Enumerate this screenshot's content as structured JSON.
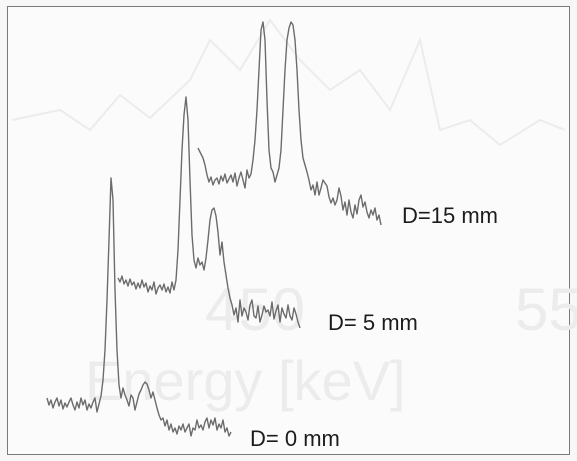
{
  "chart_data": {
    "type": "line",
    "title": "",
    "xlabel": "Energy [keV]",
    "ylabel": "",
    "background_watermark": {
      "tick_labels": [
        "450",
        "55"
      ],
      "axis_label": "Energy [keV]"
    },
    "series": [
      {
        "name": "D=15 mm",
        "color": "#6c6c6c",
        "points": [
          [
            198,
            148
          ],
          [
            200,
            152
          ],
          [
            203,
            158
          ],
          [
            205,
            165
          ],
          [
            207,
            175
          ],
          [
            209,
            182
          ],
          [
            211,
            177
          ],
          [
            213,
            185
          ],
          [
            215,
            180
          ],
          [
            217,
            178
          ],
          [
            219,
            184
          ],
          [
            221,
            176
          ],
          [
            223,
            181
          ],
          [
            225,
            174
          ],
          [
            227,
            183
          ],
          [
            229,
            179
          ],
          [
            231,
            175
          ],
          [
            233,
            182
          ],
          [
            235,
            173
          ],
          [
            237,
            186
          ],
          [
            239,
            178
          ],
          [
            241,
            172
          ],
          [
            243,
            180
          ],
          [
            245,
            188
          ],
          [
            247,
            170
          ],
          [
            249,
            178
          ],
          [
            251,
            174
          ],
          [
            253,
            160
          ],
          [
            255,
            140
          ],
          [
            257,
            110
          ],
          [
            259,
            70
          ],
          [
            261,
            30
          ],
          [
            263,
            22
          ],
          [
            265,
            40
          ],
          [
            267,
            100
          ],
          [
            269,
            150
          ],
          [
            271,
            168
          ],
          [
            273,
            172
          ],
          [
            275,
            182
          ],
          [
            277,
            175
          ],
          [
            279,
            168
          ],
          [
            281,
            150
          ],
          [
            283,
            110
          ],
          [
            285,
            70
          ],
          [
            287,
            40
          ],
          [
            289,
            28
          ],
          [
            291,
            22
          ],
          [
            293,
            25
          ],
          [
            295,
            40
          ],
          [
            297,
            70
          ],
          [
            299,
            110
          ],
          [
            301,
            140
          ],
          [
            303,
            158
          ],
          [
            305,
            165
          ],
          [
            307,
            172
          ],
          [
            309,
            180
          ],
          [
            311,
            190
          ],
          [
            313,
            185
          ],
          [
            315,
            195
          ],
          [
            317,
            182
          ],
          [
            319,
            195
          ],
          [
            321,
            188
          ],
          [
            323,
            180
          ],
          [
            325,
            183
          ],
          [
            327,
            186
          ],
          [
            329,
            197
          ],
          [
            331,
            203
          ],
          [
            333,
            198
          ],
          [
            335,
            205
          ],
          [
            337,
            200
          ],
          [
            339,
            188
          ],
          [
            341,
            196
          ],
          [
            343,
            210
          ],
          [
            345,
            202
          ],
          [
            347,
            215
          ],
          [
            349,
            200
          ],
          [
            351,
            212
          ],
          [
            353,
            218
          ],
          [
            355,
            205
          ],
          [
            357,
            214
          ],
          [
            359,
            200
          ],
          [
            361,
            195
          ],
          [
            363,
            207
          ],
          [
            365,
            202
          ],
          [
            367,
            212
          ],
          [
            369,
            218
          ],
          [
            371,
            210
          ],
          [
            373,
            215
          ],
          [
            375,
            208
          ],
          [
            377,
            220
          ],
          [
            379,
            215
          ],
          [
            381,
            225
          ]
        ]
      },
      {
        "name": "D= 5 mm",
        "color": "#6c6c6c",
        "points": [
          [
            118,
            278
          ],
          [
            120,
            282
          ],
          [
            122,
            276
          ],
          [
            124,
            284
          ],
          [
            126,
            280
          ],
          [
            128,
            286
          ],
          [
            130,
            279
          ],
          [
            132,
            285
          ],
          [
            134,
            282
          ],
          [
            136,
            289
          ],
          [
            138,
            283
          ],
          [
            140,
            288
          ],
          [
            142,
            280
          ],
          [
            144,
            287
          ],
          [
            146,
            283
          ],
          [
            148,
            292
          ],
          [
            150,
            286
          ],
          [
            152,
            290
          ],
          [
            154,
            282
          ],
          [
            156,
            294
          ],
          [
            158,
            288
          ],
          [
            160,
            285
          ],
          [
            162,
            290
          ],
          [
            164,
            284
          ],
          [
            166,
            292
          ],
          [
            168,
            287
          ],
          [
            170,
            293
          ],
          [
            172,
            282
          ],
          [
            174,
            290
          ],
          [
            176,
            280
          ],
          [
            178,
            250
          ],
          [
            180,
            200
          ],
          [
            182,
            150
          ],
          [
            184,
            115
          ],
          [
            186,
            97
          ],
          [
            188,
            120
          ],
          [
            190,
            180
          ],
          [
            192,
            235
          ],
          [
            194,
            260
          ],
          [
            196,
            268
          ],
          [
            198,
            258
          ],
          [
            200,
            265
          ],
          [
            202,
            262
          ],
          [
            204,
            270
          ],
          [
            206,
            258
          ],
          [
            208,
            240
          ],
          [
            210,
            220
          ],
          [
            212,
            210
          ],
          [
            214,
            208
          ],
          [
            216,
            216
          ],
          [
            218,
            232
          ],
          [
            220,
            255
          ],
          [
            222,
            242
          ],
          [
            224,
            262
          ],
          [
            226,
            275
          ],
          [
            228,
            288
          ],
          [
            230,
            298
          ],
          [
            232,
            305
          ],
          [
            234,
            315
          ],
          [
            236,
            308
          ],
          [
            238,
            322
          ],
          [
            240,
            300
          ],
          [
            242,
            316
          ],
          [
            244,
            308
          ],
          [
            246,
            312
          ],
          [
            248,
            320
          ],
          [
            250,
            305
          ],
          [
            252,
            300
          ],
          [
            254,
            316
          ],
          [
            256,
            318
          ],
          [
            258,
            306
          ],
          [
            260,
            322
          ],
          [
            262,
            315
          ],
          [
            264,
            306
          ],
          [
            266,
            312
          ],
          [
            268,
            310
          ],
          [
            270,
            316
          ],
          [
            272,
            302
          ],
          [
            274,
            319
          ],
          [
            276,
            311
          ],
          [
            278,
            305
          ],
          [
            280,
            322
          ],
          [
            282,
            308
          ],
          [
            284,
            314
          ],
          [
            286,
            318
          ],
          [
            288,
            305
          ],
          [
            290,
            316
          ],
          [
            292,
            320
          ],
          [
            294,
            308
          ],
          [
            296,
            314
          ],
          [
            298,
            322
          ],
          [
            300,
            328
          ]
        ]
      },
      {
        "name": "D= 0 mm",
        "color": "#6c6c6c",
        "points": [
          [
            47,
            398
          ],
          [
            49,
            405
          ],
          [
            51,
            400
          ],
          [
            53,
            408
          ],
          [
            55,
            402
          ],
          [
            57,
            398
          ],
          [
            59,
            406
          ],
          [
            61,
            400
          ],
          [
            63,
            409
          ],
          [
            65,
            403
          ],
          [
            67,
            407
          ],
          [
            69,
            402
          ],
          [
            71,
            398
          ],
          [
            73,
            405
          ],
          [
            75,
            410
          ],
          [
            77,
            402
          ],
          [
            79,
            408
          ],
          [
            81,
            398
          ],
          [
            83,
            405
          ],
          [
            85,
            400
          ],
          [
            87,
            410
          ],
          [
            89,
            404
          ],
          [
            91,
            408
          ],
          [
            93,
            402
          ],
          [
            95,
            398
          ],
          [
            97,
            412
          ],
          [
            99,
            404
          ],
          [
            101,
            396
          ],
          [
            103,
            380
          ],
          [
            105,
            350
          ],
          [
            107,
            300
          ],
          [
            109,
            240
          ],
          [
            111,
            178
          ],
          [
            113,
            200
          ],
          [
            115,
            290
          ],
          [
            117,
            350
          ],
          [
            119,
            385
          ],
          [
            121,
            398
          ],
          [
            123,
            388
          ],
          [
            125,
            395
          ],
          [
            127,
            400
          ],
          [
            129,
            406
          ],
          [
            131,
            395
          ],
          [
            133,
            398
          ],
          [
            135,
            410
          ],
          [
            137,
            402
          ],
          [
            139,
            394
          ],
          [
            141,
            390
          ],
          [
            143,
            385
          ],
          [
            145,
            382
          ],
          [
            147,
            384
          ],
          [
            149,
            390
          ],
          [
            151,
            398
          ],
          [
            153,
            392
          ],
          [
            155,
            400
          ],
          [
            157,
            408
          ],
          [
            159,
            415
          ],
          [
            161,
            420
          ],
          [
            163,
            418
          ],
          [
            165,
            426
          ],
          [
            167,
            420
          ],
          [
            169,
            430
          ],
          [
            171,
            424
          ],
          [
            173,
            432
          ],
          [
            175,
            428
          ],
          [
            177,
            434
          ],
          [
            179,
            426
          ],
          [
            181,
            430
          ],
          [
            183,
            424
          ],
          [
            185,
            432
          ],
          [
            187,
            428
          ],
          [
            189,
            424
          ],
          [
            191,
            436
          ],
          [
            193,
            428
          ],
          [
            195,
            430
          ],
          [
            197,
            420
          ],
          [
            199,
            428
          ],
          [
            201,
            425
          ],
          [
            203,
            430
          ],
          [
            205,
            422
          ],
          [
            207,
            418
          ],
          [
            209,
            428
          ],
          [
            211,
            420
          ],
          [
            213,
            425
          ],
          [
            215,
            418
          ],
          [
            217,
            430
          ],
          [
            219,
            424
          ],
          [
            221,
            428
          ],
          [
            223,
            420
          ],
          [
            225,
            432
          ],
          [
            227,
            428
          ],
          [
            229,
            436
          ],
          [
            231,
            432
          ]
        ]
      }
    ],
    "grid": false,
    "legend": "inline labels at right end of each trace"
  }
}
